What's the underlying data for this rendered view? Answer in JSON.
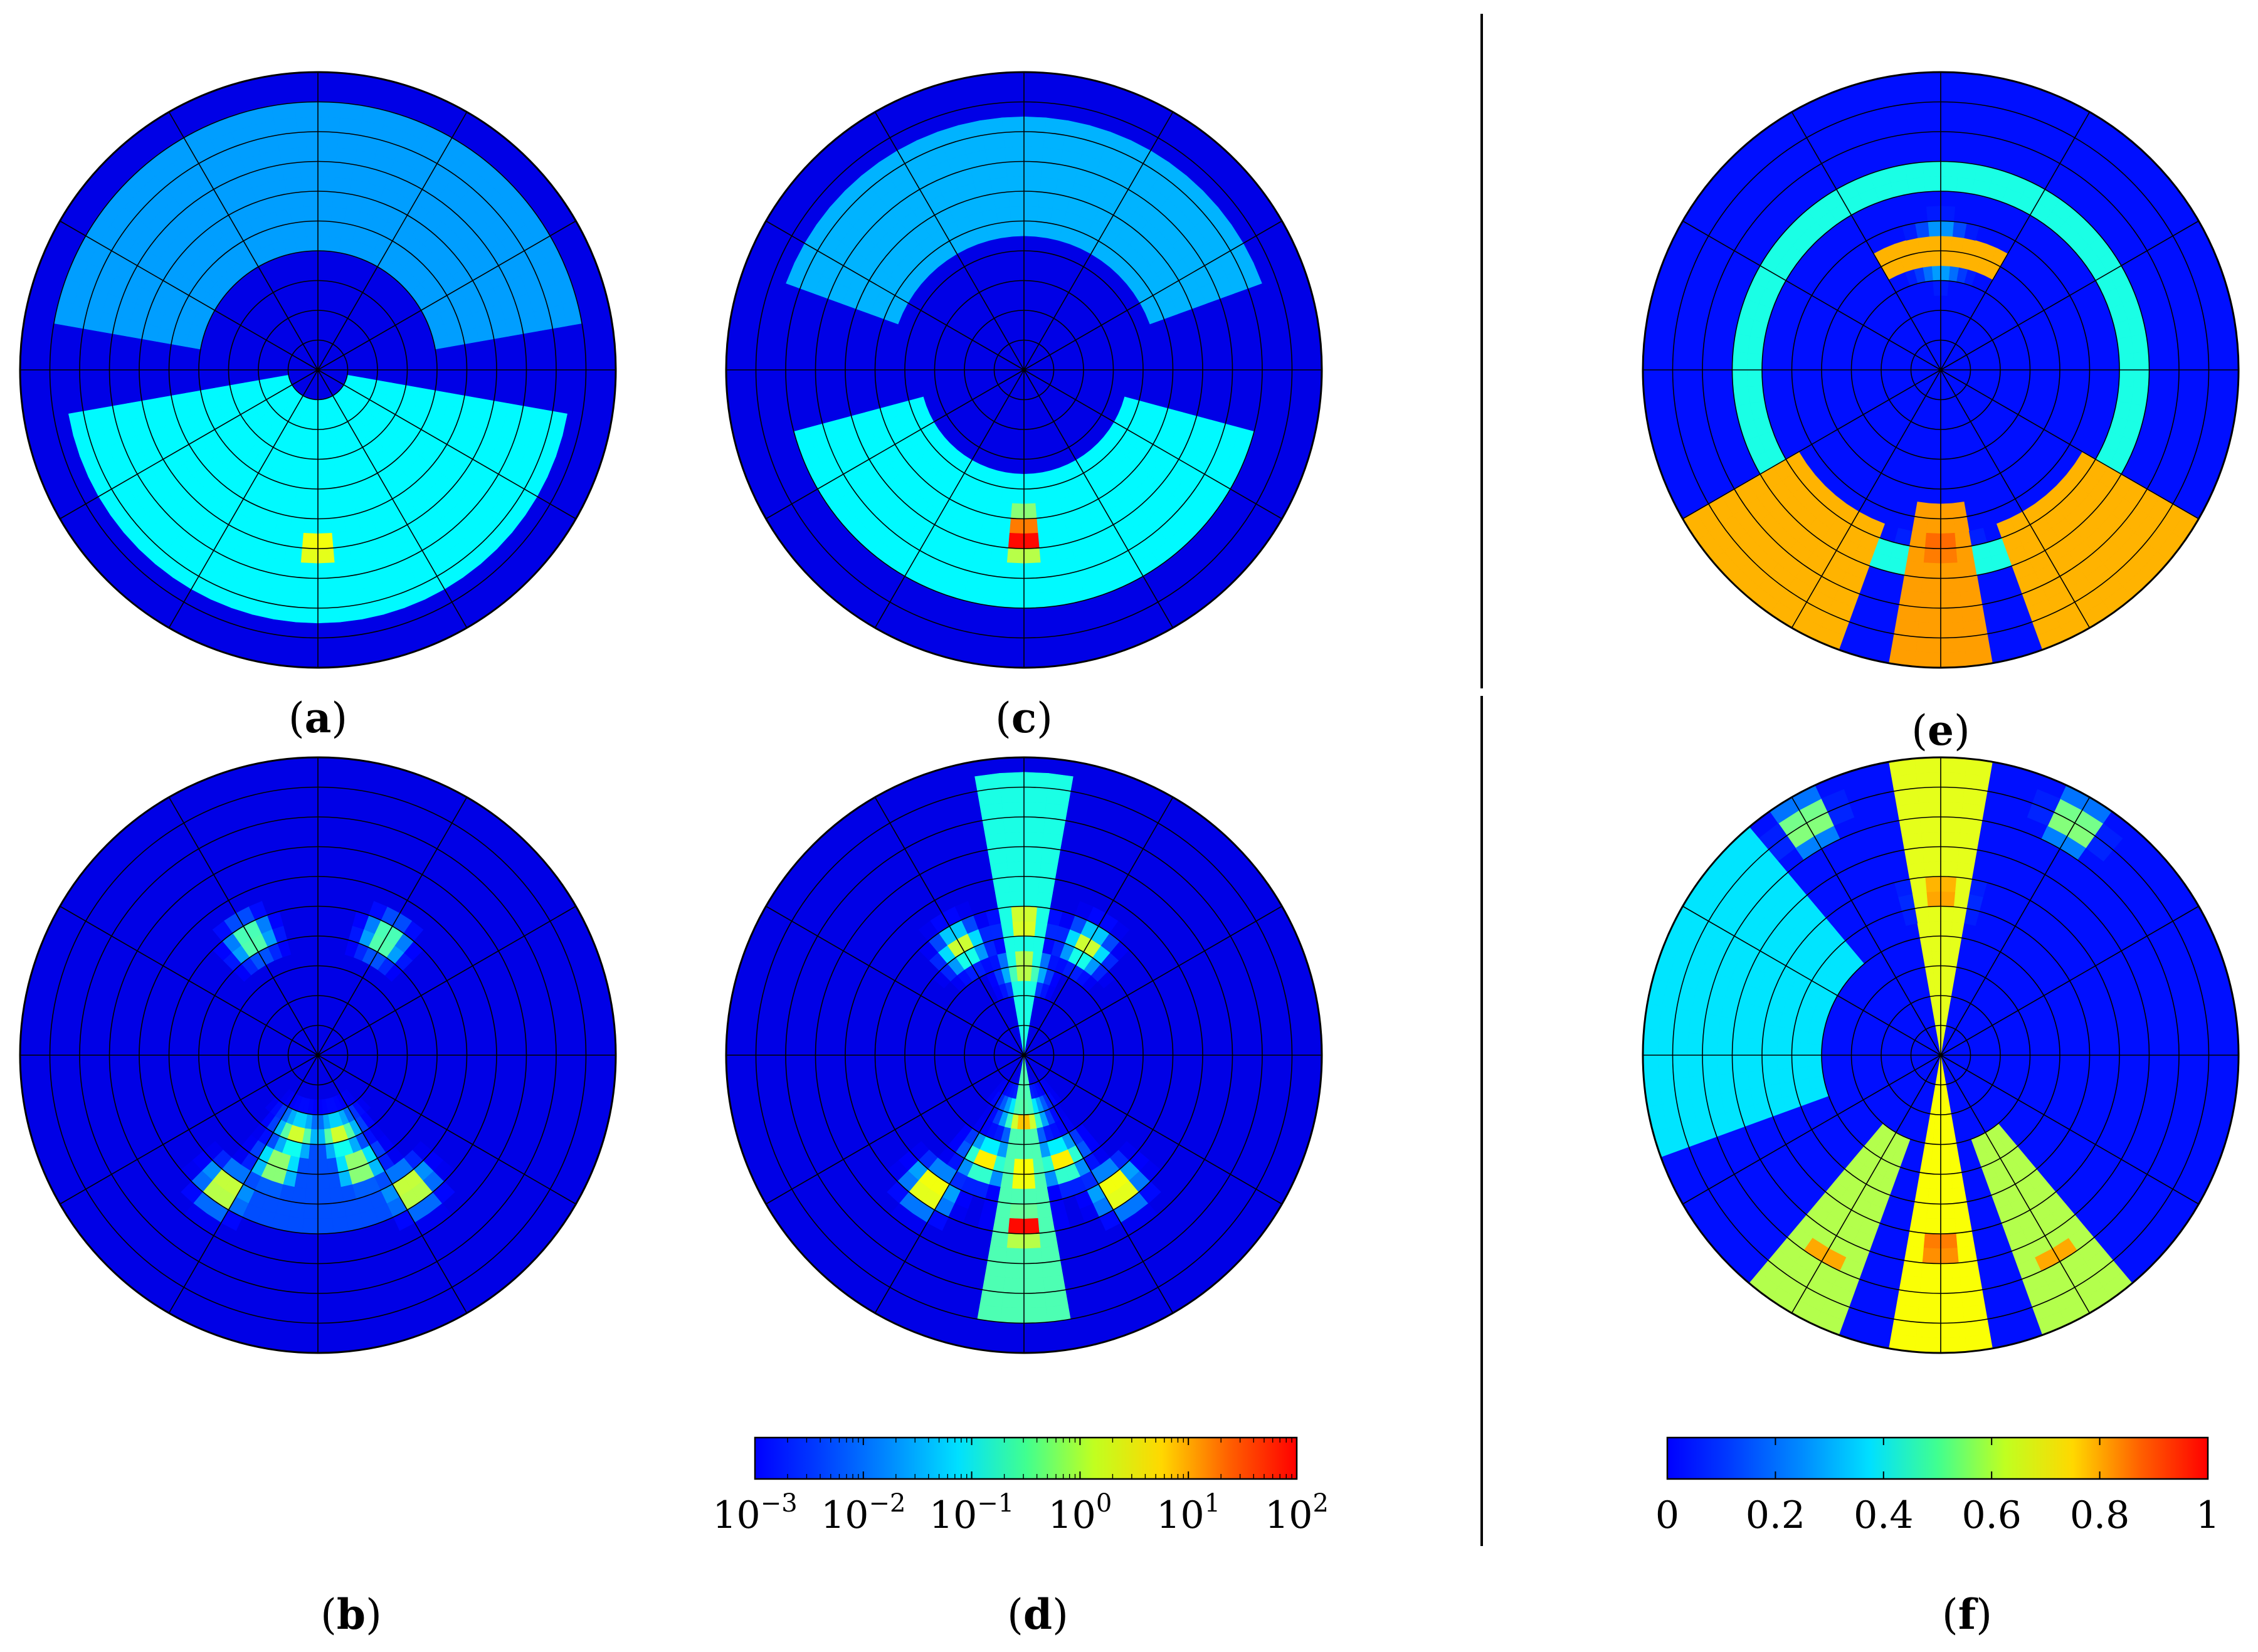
{
  "chart_data": {
    "type": "heatmap",
    "panels": [
      {
        "id": "a",
        "label": "(a)",
        "kind": "polar-log",
        "hotspots": [
          {
            "theta": 270,
            "r": 0.6,
            "v": 0.8
          }
        ],
        "bands": [
          {
            "t0": 190,
            "t1": 350,
            "r0": 0.1,
            "r1": 0.85,
            "v": 0.37
          },
          {
            "t0": 10,
            "t1": 170,
            "r0": 0.4,
            "r1": 0.88,
            "v": 0.28
          }
        ]
      },
      {
        "id": "b",
        "label": "(b)",
        "kind": "polar-log",
        "hotspots": [
          {
            "theta": 235,
            "r": 0.55,
            "v": 0.72
          },
          {
            "theta": 305,
            "r": 0.55,
            "v": 0.72
          },
          {
            "theta": 250,
            "r": 0.4,
            "v": 0.62
          },
          {
            "theta": 290,
            "r": 0.4,
            "v": 0.62
          },
          {
            "theta": 255,
            "r": 0.28,
            "v": 0.6
          },
          {
            "theta": 285,
            "r": 0.28,
            "v": 0.6
          },
          {
            "theta": 120,
            "r": 0.45,
            "v": 0.55
          },
          {
            "theta": 60,
            "r": 0.45,
            "v": 0.55
          }
        ],
        "bands": [
          {
            "t0": 240,
            "t1": 300,
            "r0": 0.3,
            "r1": 0.6,
            "v": 0.2
          }
        ]
      },
      {
        "id": "c",
        "label": "(c)",
        "kind": "polar-log",
        "hotspots": [
          {
            "theta": 270,
            "r": 0.58,
            "v": 1.0
          },
          {
            "theta": 270,
            "r": 0.52,
            "v": 0.85
          }
        ],
        "bands": [
          {
            "t0": 195,
            "t1": 345,
            "r0": 0.35,
            "r1": 0.82,
            "v": 0.37
          },
          {
            "t0": 20,
            "t1": 160,
            "r0": 0.45,
            "r1": 0.85,
            "v": 0.3
          }
        ]
      },
      {
        "id": "d",
        "label": "(d)",
        "kind": "polar-log",
        "hotspots": [
          {
            "theta": 270,
            "r": 0.58,
            "v": 1.0
          },
          {
            "theta": 270,
            "r": 0.4,
            "v": 0.75
          },
          {
            "theta": 270,
            "r": 0.22,
            "v": 0.7
          },
          {
            "theta": 90,
            "r": 0.45,
            "v": 0.72
          },
          {
            "theta": 90,
            "r": 0.3,
            "v": 0.65
          },
          {
            "theta": 235,
            "r": 0.55,
            "v": 0.78
          },
          {
            "theta": 305,
            "r": 0.55,
            "v": 0.78
          },
          {
            "theta": 250,
            "r": 0.38,
            "v": 0.68
          },
          {
            "theta": 290,
            "r": 0.38,
            "v": 0.68
          },
          {
            "theta": 120,
            "r": 0.42,
            "v": 0.62
          },
          {
            "theta": 60,
            "r": 0.42,
            "v": 0.62
          }
        ],
        "bands": [
          {
            "t0": 260,
            "t1": 280,
            "r0": 0.0,
            "r1": 0.9,
            "v": 0.45
          },
          {
            "t0": 80,
            "t1": 100,
            "r0": 0.0,
            "r1": 0.95,
            "v": 0.4
          }
        ]
      },
      {
        "id": "e",
        "label": "(e)",
        "kind": "polar-linear",
        "hotspots": [
          {
            "theta": 270,
            "r": 0.6,
            "v": 1.0
          },
          {
            "theta": 230,
            "r": 0.85,
            "v": 0.85
          },
          {
            "theta": 310,
            "r": 0.85,
            "v": 0.85
          },
          {
            "theta": 90,
            "r": 0.4,
            "v": 0.72
          }
        ],
        "bands": [
          {
            "t0": 210,
            "t1": 250,
            "r0": 0.55,
            "r1": 1.0,
            "v": 0.7
          },
          {
            "t0": 290,
            "t1": 330,
            "r0": 0.55,
            "r1": 1.0,
            "v": 0.7
          },
          {
            "t0": 262,
            "t1": 278,
            "r0": 0.45,
            "r1": 1.0,
            "v": 0.72
          },
          {
            "t0": 60,
            "t1": 120,
            "r0": 0.35,
            "r1": 0.45,
            "v": 0.7
          },
          {
            "t0": 0,
            "t1": 360,
            "r0": 0.62,
            "r1": 0.72,
            "v": 0.4
          }
        ]
      },
      {
        "id": "f",
        "label": "(f)",
        "kind": "polar-linear",
        "hotspots": [
          {
            "theta": 270,
            "r": 0.65,
            "v": 1.0
          },
          {
            "theta": 90,
            "r": 0.55,
            "v": 0.9
          },
          {
            "theta": 240,
            "r": 0.78,
            "v": 0.9
          },
          {
            "theta": 300,
            "r": 0.78,
            "v": 0.9
          },
          {
            "theta": 60,
            "r": 0.9,
            "v": 0.75
          },
          {
            "theta": 120,
            "r": 0.9,
            "v": 0.75
          }
        ],
        "bands": [
          {
            "t0": 260,
            "t1": 280,
            "r0": 0.0,
            "r1": 1.0,
            "v": 0.62
          },
          {
            "t0": 80,
            "t1": 100,
            "r0": 0.0,
            "r1": 1.0,
            "v": 0.6
          },
          {
            "t0": 130,
            "t1": 200,
            "r0": 0.4,
            "r1": 1.0,
            "v": 0.35
          },
          {
            "t0": 230,
            "t1": 250,
            "r0": 0.3,
            "r1": 1.0,
            "v": 0.55
          },
          {
            "t0": 290,
            "t1": 310,
            "r0": 0.3,
            "r1": 1.0,
            "v": 0.55
          }
        ]
      }
    ],
    "colorbars": [
      {
        "id": "log",
        "scale": "log",
        "range": [
          0.001,
          100
        ],
        "ticks": [
          {
            "base": "10",
            "exp": "−3"
          },
          {
            "base": "10",
            "exp": "−2"
          },
          {
            "base": "10",
            "exp": "−1"
          },
          {
            "base": "10",
            "exp": "0"
          },
          {
            "base": "10",
            "exp": "1"
          },
          {
            "base": "10",
            "exp": "2"
          }
        ]
      },
      {
        "id": "linear",
        "scale": "linear",
        "range": [
          0,
          1
        ],
        "ticks": [
          "0",
          "0.2",
          "0.4",
          "0.6",
          "0.8",
          "1"
        ]
      }
    ],
    "polar_grid": {
      "rings": 10,
      "spokes": 12
    },
    "colormap": "jet"
  },
  "labels": {
    "a_open": "(",
    "a_letter": "a",
    "a_close": ")",
    "b_open": "(",
    "b_letter": "b",
    "b_close": ")",
    "c_open": "(",
    "c_letter": "c",
    "c_close": ")",
    "d_open": "(",
    "d_letter": "d",
    "d_close": ")",
    "e_open": "(",
    "e_letter": "e",
    "e_close": ")",
    "f_open": "(",
    "f_letter": "f",
    "f_close": ")"
  }
}
